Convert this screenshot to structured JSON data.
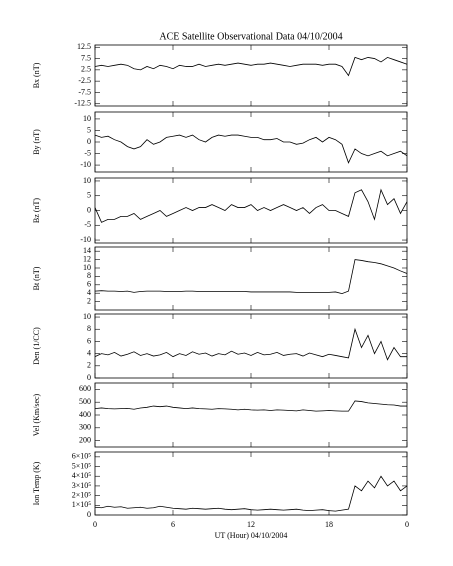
{
  "chart_data": [
    {
      "type": "line",
      "title": "ACE Satellite Observational Data   04/10/2004",
      "ylabel": "Bx (nT)",
      "color": "#000000",
      "xlim": [
        0,
        24
      ],
      "ylim": [
        -13.5,
        13.5
      ],
      "yticks": [
        -12.5,
        -7.5,
        -2.5,
        2.5,
        7.5,
        12.5
      ],
      "x": [
        0,
        0.5,
        1,
        1.5,
        2,
        2.5,
        3,
        3.5,
        4,
        4.5,
        5,
        5.5,
        6,
        6.5,
        7,
        7.5,
        8,
        8.5,
        9,
        9.5,
        10,
        10.5,
        11,
        11.5,
        12,
        12.5,
        13,
        13.5,
        14,
        14.5,
        15,
        15.5,
        16,
        16.5,
        17,
        17.5,
        18,
        18.5,
        19,
        19.5,
        20,
        20.5,
        21,
        21.5,
        22,
        22.5,
        23,
        23.5,
        24
      ],
      "values": [
        4,
        4.5,
        4,
        4.5,
        5,
        4.5,
        3,
        2.5,
        4,
        3,
        4.5,
        4,
        3,
        4.5,
        4,
        4,
        5,
        4,
        4.5,
        5,
        4.5,
        5,
        5.5,
        5,
        4.5,
        5,
        5,
        5.5,
        5,
        4.5,
        4,
        4.5,
        5,
        5,
        5,
        4.5,
        5,
        5,
        4,
        0,
        8,
        7,
        8,
        7.5,
        6,
        8,
        7,
        6,
        5
      ]
    },
    {
      "type": "line",
      "ylabel": "By (nT)",
      "color": "#000000",
      "xlim": [
        0,
        24
      ],
      "ylim": [
        -13,
        13
      ],
      "yticks": [
        -10,
        -5,
        0,
        5,
        10
      ],
      "x": [
        0,
        0.5,
        1,
        1.5,
        2,
        2.5,
        3,
        3.5,
        4,
        4.5,
        5,
        5.5,
        6,
        6.5,
        7,
        7.5,
        8,
        8.5,
        9,
        9.5,
        10,
        10.5,
        11,
        11.5,
        12,
        12.5,
        13,
        13.5,
        14,
        14.5,
        15,
        15.5,
        16,
        16.5,
        17,
        17.5,
        18,
        18.5,
        19,
        19.5,
        20,
        20.5,
        21,
        21.5,
        22,
        22.5,
        23,
        23.5,
        24
      ],
      "values": [
        3,
        2,
        2.5,
        1,
        0,
        -2,
        -3,
        -2,
        1,
        -1,
        0,
        2,
        2.5,
        3,
        2,
        3,
        1,
        0,
        2,
        3,
        2.5,
        3,
        3,
        2.5,
        2,
        2,
        1,
        1,
        1.5,
        0,
        0,
        -1,
        -0.5,
        1,
        2,
        0,
        2,
        1,
        -1,
        -9,
        -3,
        -5,
        -6,
        -5,
        -4,
        -6,
        -5,
        -4,
        -6
      ]
    },
    {
      "type": "line",
      "ylabel": "Bz (nT)",
      "color": "#000000",
      "xlim": [
        0,
        24
      ],
      "ylim": [
        -11,
        11
      ],
      "yticks": [
        -10,
        -5,
        0,
        5,
        10
      ],
      "x": [
        0,
        0.5,
        1,
        1.5,
        2,
        2.5,
        3,
        3.5,
        4,
        4.5,
        5,
        5.5,
        6,
        6.5,
        7,
        7.5,
        8,
        8.5,
        9,
        9.5,
        10,
        10.5,
        11,
        11.5,
        12,
        12.5,
        13,
        13.5,
        14,
        14.5,
        15,
        15.5,
        16,
        16.5,
        17,
        17.5,
        18,
        18.5,
        19,
        19.5,
        20,
        20.5,
        21,
        21.5,
        22,
        22.5,
        23,
        23.5,
        24
      ],
      "values": [
        1,
        -4,
        -3,
        -3,
        -2,
        -2,
        -1,
        -3,
        -2,
        -1,
        0,
        -2,
        -1,
        0,
        1,
        0,
        1,
        1,
        2,
        1,
        0,
        2,
        1,
        1,
        2,
        0,
        1,
        0,
        1,
        2,
        1,
        0,
        1,
        -1,
        1,
        2,
        0,
        0,
        -1,
        -2,
        6,
        7,
        3,
        -3,
        7,
        2,
        4,
        -1,
        3
      ]
    },
    {
      "type": "line",
      "ylabel": "Bt (nT)",
      "color": "#000000",
      "xlim": [
        0,
        24
      ],
      "ylim": [
        0,
        15
      ],
      "yticks": [
        2,
        4,
        6,
        8,
        10,
        12,
        14
      ],
      "x": [
        0,
        0.5,
        1,
        1.5,
        2,
        2.5,
        3,
        3.5,
        4,
        4.5,
        5,
        5.5,
        6,
        6.5,
        7,
        7.5,
        8,
        8.5,
        9,
        9.5,
        10,
        10.5,
        11,
        11.5,
        12,
        12.5,
        13,
        13.5,
        14,
        14.5,
        15,
        15.5,
        16,
        16.5,
        17,
        17.5,
        18,
        18.5,
        19,
        19.5,
        20,
        20.5,
        21,
        21.5,
        22,
        22.5,
        23,
        23.5,
        24
      ],
      "values": [
        4.5,
        4.6,
        4.5,
        4.5,
        4.4,
        4.5,
        4.2,
        4.4,
        4.5,
        4.5,
        4.5,
        4.4,
        4.4,
        4.4,
        4.5,
        4.5,
        4.4,
        4.4,
        4.4,
        4.4,
        4.4,
        4.4,
        4.4,
        4.4,
        4.3,
        4.3,
        4.3,
        4.3,
        4.3,
        4.3,
        4.3,
        4.2,
        4.2,
        4.2,
        4.2,
        4.2,
        4.2,
        4.3,
        3.9,
        4.5,
        12,
        11.8,
        11.5,
        11.3,
        11,
        10.5,
        10,
        9.3,
        8.7
      ]
    },
    {
      "type": "line",
      "ylabel": "Den (1/CC)",
      "color": "#000000",
      "xlim": [
        0,
        24
      ],
      "ylim": [
        0,
        10.5
      ],
      "yticks": [
        0,
        2,
        4,
        6,
        8,
        10
      ],
      "x": [
        0,
        0.5,
        1,
        1.5,
        2,
        2.5,
        3,
        3.5,
        4,
        4.5,
        5,
        5.5,
        6,
        6.5,
        7,
        7.5,
        8,
        8.5,
        9,
        9.5,
        10,
        10.5,
        11,
        11.5,
        12,
        12.5,
        13,
        13.5,
        14,
        14.5,
        15,
        15.5,
        16,
        16.5,
        17,
        17.5,
        18,
        18.5,
        19,
        19.5,
        20,
        20.5,
        21,
        21.5,
        22,
        22.5,
        23,
        23.5,
        24
      ],
      "values": [
        3.5,
        4,
        3.8,
        4.2,
        3.6,
        3.9,
        4.3,
        3.7,
        4,
        3.6,
        3.8,
        4.2,
        3.5,
        4,
        3.7,
        4.3,
        3.9,
        4.1,
        3.6,
        4,
        3.8,
        4.4,
        3.9,
        4.1,
        3.7,
        4.2,
        3.8,
        3.9,
        4.2,
        3.7,
        3.9,
        4,
        3.6,
        4.1,
        3.8,
        3.5,
        3.9,
        3.7,
        3.5,
        3.3,
        8,
        5,
        7,
        4,
        6,
        3,
        5,
        3.5,
        3.5
      ]
    },
    {
      "type": "line",
      "ylabel": "Vel (Km/sec)",
      "color": "#000000",
      "xlim": [
        0,
        24
      ],
      "ylim": [
        150,
        650
      ],
      "yticks": [
        200,
        300,
        400,
        500,
        600
      ],
      "x": [
        0,
        0.5,
        1,
        1.5,
        2,
        2.5,
        3,
        3.5,
        4,
        4.5,
        5,
        5.5,
        6,
        6.5,
        7,
        7.5,
        8,
        8.5,
        9,
        9.5,
        10,
        10.5,
        11,
        11.5,
        12,
        12.5,
        13,
        13.5,
        14,
        14.5,
        15,
        15.5,
        16,
        16.5,
        17,
        17.5,
        18,
        18.5,
        19,
        19.5,
        20,
        20.5,
        21,
        21.5,
        22,
        22.5,
        23,
        23.5,
        24
      ],
      "values": [
        450,
        455,
        450,
        448,
        450,
        452,
        445,
        455,
        460,
        470,
        465,
        470,
        460,
        455,
        450,
        455,
        450,
        448,
        445,
        450,
        448,
        445,
        440,
        445,
        440,
        438,
        440,
        435,
        440,
        438,
        435,
        432,
        440,
        435,
        430,
        432,
        435,
        432,
        430,
        430,
        510,
        505,
        495,
        490,
        485,
        480,
        478,
        470,
        470
      ]
    },
    {
      "type": "line",
      "ylabel": "Ion Temp (K)",
      "xlabel": "UT (Hour)   04/10/2004",
      "color": "#000000",
      "xlim": [
        0,
        24
      ],
      "xticks": [
        0,
        6,
        12,
        18,
        {
          "value": 24,
          "label": "0"
        }
      ],
      "ylim": [
        0,
        650000
      ],
      "yticks": [
        0,
        {
          "value": 100000,
          "label": "1×10⁵"
        },
        {
          "value": 200000,
          "label": "2×10⁵"
        },
        {
          "value": 300000,
          "label": "3×10⁵"
        },
        {
          "value": 400000,
          "label": "4×10⁵"
        },
        {
          "value": 500000,
          "label": "5×10⁵"
        },
        {
          "value": 600000,
          "label": "6×10⁵"
        }
      ],
      "x": [
        0,
        0.5,
        1,
        1.5,
        2,
        2.5,
        3,
        3.5,
        4,
        4.5,
        5,
        5.5,
        6,
        6.5,
        7,
        7.5,
        8,
        8.5,
        9,
        9.5,
        10,
        10.5,
        11,
        11.5,
        12,
        12.5,
        13,
        13.5,
        14,
        14.5,
        15,
        15.5,
        16,
        16.5,
        17,
        17.5,
        18,
        18.5,
        19,
        19.5,
        20,
        20.5,
        21,
        21.5,
        22,
        22.5,
        23,
        23.5,
        24
      ],
      "values": [
        80000,
        75000,
        90000,
        80000,
        85000,
        70000,
        75000,
        80000,
        70000,
        75000,
        90000,
        80000,
        70000,
        65000,
        60000,
        70000,
        65000,
        60000,
        65000,
        70000,
        60000,
        55000,
        60000,
        65000,
        55000,
        50000,
        55000,
        60000,
        55000,
        50000,
        55000,
        60000,
        50000,
        45000,
        50000,
        55000,
        45000,
        40000,
        50000,
        60000,
        300000,
        250000,
        350000,
        280000,
        400000,
        300000,
        350000,
        250000,
        300000
      ]
    }
  ]
}
